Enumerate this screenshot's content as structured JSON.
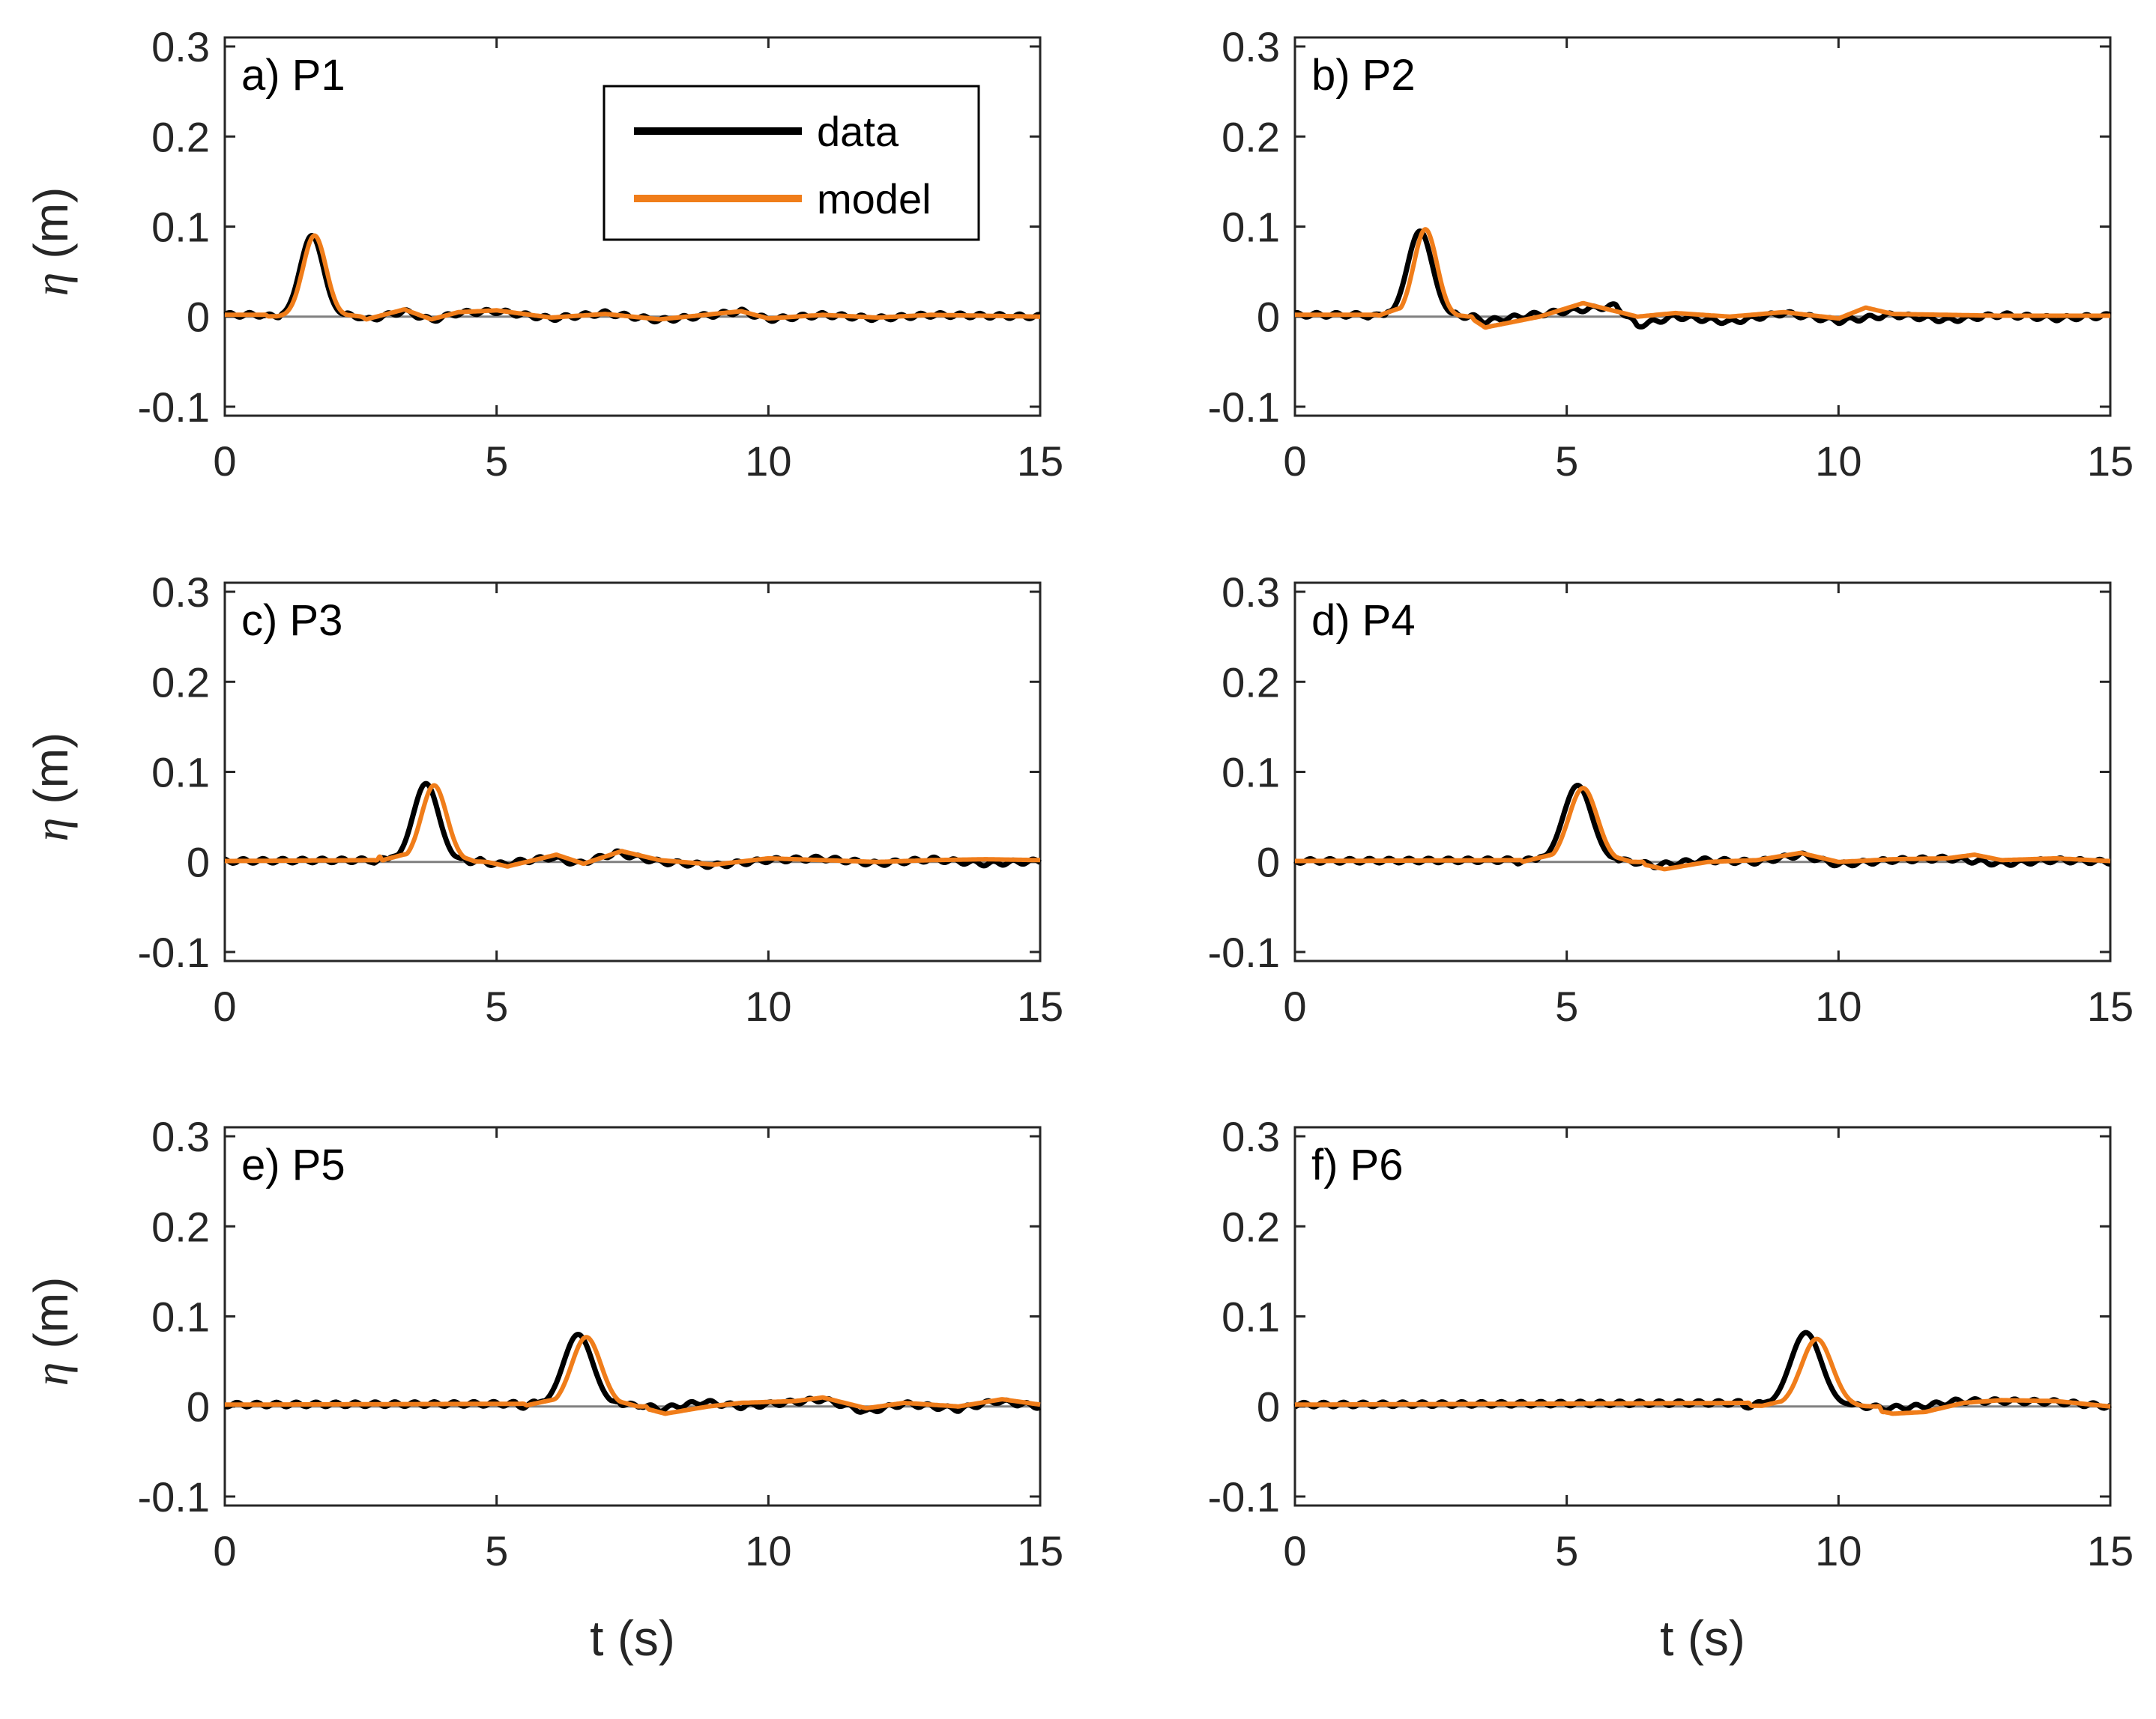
{
  "chart_data": [
    {
      "type": "line",
      "panel_label": "a) P1",
      "xlabel": "",
      "ylabel_symbol": "η",
      "ylabel_unit": "(m)",
      "xlim": [
        0,
        15
      ],
      "ylim": [
        -0.11,
        0.31
      ],
      "xticks": [
        "0",
        "5",
        "10",
        "15"
      ],
      "yticks": [
        "-0.1",
        "0",
        "0.1",
        "0.2",
        "0.3"
      ],
      "baseline": 0,
      "series": [
        {
          "name": "data",
          "color": "#000000",
          "peak": {
            "t": 1.6,
            "eta": 0.09
          },
          "width": 0.3,
          "x": [
            0,
            1.0,
            1.6,
            2.2,
            2.6,
            3.3,
            3.8,
            4.3,
            5.0,
            6.0,
            7.0,
            8.0,
            9.0,
            9.5,
            10.0,
            11.0,
            12.0,
            13.0,
            14.0,
            15.0
          ],
          "y": [
            0.002,
            0.002,
            0.09,
            0.01,
            -0.004,
            0.006,
            -0.004,
            0.004,
            0.006,
            -0.002,
            0.004,
            -0.004,
            0.002,
            0.006,
            -0.003,
            0.002,
            -0.002,
            0.002,
            0.001,
            0.0
          ]
        },
        {
          "name": "model",
          "color": "#f07d1a",
          "peak": {
            "t": 1.65,
            "eta": 0.09
          },
          "width": 0.3,
          "x": [
            0,
            1.0,
            1.65,
            2.25,
            2.6,
            3.3,
            3.8,
            4.3,
            5.0,
            6.0,
            7.0,
            8.0,
            9.0,
            9.5,
            10.0,
            11.0,
            12.0,
            13.0,
            14.0,
            15.0
          ],
          "y": [
            0.002,
            0.002,
            0.09,
            0.01,
            -0.003,
            0.008,
            -0.003,
            0.005,
            0.007,
            -0.001,
            0.003,
            -0.003,
            0.003,
            0.006,
            -0.002,
            0.002,
            -0.001,
            0.002,
            0.001,
            0.0
          ]
        }
      ]
    },
    {
      "type": "line",
      "panel_label": "b) P2",
      "xlabel": "",
      "ylabel_symbol": "",
      "ylabel_unit": "",
      "xlim": [
        0,
        15
      ],
      "ylim": [
        -0.11,
        0.31
      ],
      "xticks": [
        "0",
        "5",
        "10",
        "15"
      ],
      "yticks": [
        "-0.1",
        "0",
        "0.1",
        "0.2",
        "0.3"
      ],
      "baseline": 0,
      "series": [
        {
          "name": "data",
          "color": "#000000",
          "peak": {
            "t": 2.3,
            "eta": 0.095
          },
          "width": 0.32,
          "x": [
            0,
            1.5,
            2.3,
            3.0,
            3.5,
            4.5,
            5.3,
            5.9,
            6.3,
            7.0,
            8.0,
            9.0,
            10.0,
            11.0,
            12.0,
            13.0,
            14.0,
            15.0
          ],
          "y": [
            0.002,
            0.002,
            0.095,
            0.006,
            -0.005,
            0.003,
            0.008,
            0.012,
            -0.01,
            0.0,
            -0.006,
            0.004,
            -0.005,
            0.002,
            -0.004,
            0.002,
            -0.002,
            0.001
          ]
        },
        {
          "name": "model",
          "color": "#f07d1a",
          "peak": {
            "t": 2.4,
            "eta": 0.097
          },
          "width": 0.3,
          "x": [
            0,
            1.5,
            2.4,
            3.0,
            3.5,
            4.5,
            5.3,
            5.9,
            6.3,
            7.0,
            8.0,
            9.0,
            10.0,
            10.5,
            11.0,
            12.0,
            13.0,
            14.0,
            15.0
          ],
          "y": [
            0.002,
            0.002,
            0.097,
            0.008,
            -0.012,
            0.0,
            0.015,
            0.006,
            0.0,
            0.004,
            0.0,
            0.005,
            -0.002,
            0.01,
            0.003,
            0.002,
            0.001,
            0.001,
            0.001
          ]
        }
      ]
    },
    {
      "type": "line",
      "panel_label": "c) P3",
      "xlabel": "",
      "ylabel_symbol": "η",
      "ylabel_unit": "(m)",
      "xlim": [
        0,
        15
      ],
      "ylim": [
        -0.11,
        0.31
      ],
      "xticks": [
        "0",
        "5",
        "10",
        "15"
      ],
      "yticks": [
        "-0.1",
        "0",
        "0.1",
        "0.2",
        "0.3"
      ],
      "baseline": 0,
      "series": [
        {
          "name": "data",
          "color": "#000000",
          "peak": {
            "t": 3.7,
            "eta": 0.087
          },
          "width": 0.33,
          "x": [
            0,
            2.8,
            3.7,
            4.5,
            5.0,
            6.0,
            6.5,
            7.2,
            8.0,
            9.0,
            10.0,
            11.0,
            12.0,
            13.0,
            14.0,
            15.0
          ],
          "y": [
            0.001,
            0.002,
            0.087,
            0.004,
            -0.003,
            0.005,
            -0.002,
            0.01,
            0.0,
            -0.004,
            0.002,
            0.004,
            -0.002,
            0.003,
            -0.002,
            0.001
          ]
        },
        {
          "name": "model",
          "color": "#f07d1a",
          "peak": {
            "t": 3.85,
            "eta": 0.085
          },
          "width": 0.33,
          "x": [
            0,
            2.8,
            3.85,
            4.6,
            5.2,
            6.1,
            6.6,
            7.3,
            8.0,
            9.0,
            10.0,
            11.0,
            12.0,
            13.0,
            14.0,
            15.0
          ],
          "y": [
            0.001,
            0.002,
            0.085,
            0.003,
            -0.005,
            0.008,
            -0.002,
            0.012,
            0.002,
            -0.003,
            0.004,
            0.002,
            0.0,
            0.002,
            0.003,
            0.002
          ]
        }
      ]
    },
    {
      "type": "line",
      "panel_label": "d) P4",
      "xlabel": "",
      "ylabel_symbol": "",
      "ylabel_unit": "",
      "xlim": [
        0,
        15
      ],
      "ylim": [
        -0.11,
        0.31
      ],
      "xticks": [
        "0",
        "5",
        "10",
        "15"
      ],
      "yticks": [
        "-0.1",
        "0",
        "0.1",
        "0.2",
        "0.3"
      ],
      "baseline": 0,
      "series": [
        {
          "name": "data",
          "color": "#000000",
          "peak": {
            "t": 5.2,
            "eta": 0.085
          },
          "width": 0.37,
          "x": [
            0,
            4.2,
            5.2,
            6.1,
            6.6,
            7.5,
            8.5,
            9.3,
            10.0,
            11.0,
            12.0,
            13.0,
            14.0,
            15.0
          ],
          "y": [
            0.001,
            0.002,
            0.085,
            0.002,
            -0.004,
            0.002,
            0.0,
            0.008,
            -0.003,
            0.002,
            0.004,
            -0.002,
            0.002,
            0.0
          ]
        },
        {
          "name": "model",
          "color": "#f07d1a",
          "peak": {
            "t": 5.3,
            "eta": 0.082
          },
          "width": 0.37,
          "x": [
            0,
            4.2,
            5.3,
            6.2,
            6.8,
            7.6,
            8.5,
            9.3,
            10.0,
            11.0,
            12.0,
            12.5,
            13.0,
            14.0,
            15.0
          ],
          "y": [
            0.001,
            0.002,
            0.082,
            0.0,
            -0.008,
            0.0,
            0.002,
            0.01,
            0.0,
            0.003,
            0.004,
            0.008,
            0.002,
            0.004,
            0.001
          ]
        }
      ]
    },
    {
      "type": "line",
      "panel_label": "e) P5",
      "xlabel": "t (s)",
      "ylabel_symbol": "η",
      "ylabel_unit": "(m)",
      "xlim": [
        0,
        15
      ],
      "ylim": [
        -0.11,
        0.31
      ],
      "xticks": [
        "0",
        "5",
        "10",
        "15"
      ],
      "yticks": [
        "-0.1",
        "0",
        "0.1",
        "0.2",
        "0.3"
      ],
      "baseline": 0,
      "series": [
        {
          "name": "data",
          "color": "#000000",
          "peak": {
            "t": 6.5,
            "eta": 0.08
          },
          "width": 0.38,
          "x": [
            0,
            5.5,
            6.5,
            7.5,
            8.0,
            8.8,
            9.5,
            10.5,
            11.0,
            11.8,
            12.5,
            13.5,
            14.2,
            15.0
          ],
          "y": [
            0.002,
            0.003,
            0.08,
            0.004,
            -0.003,
            0.005,
            0.0,
            0.005,
            0.008,
            -0.006,
            0.003,
            -0.003,
            0.006,
            0.0
          ]
        },
        {
          "name": "model",
          "color": "#f07d1a",
          "peak": {
            "t": 6.65,
            "eta": 0.077
          },
          "width": 0.38,
          "x": [
            0,
            5.5,
            6.65,
            7.6,
            8.1,
            8.9,
            9.5,
            10.5,
            11.0,
            11.8,
            12.5,
            13.5,
            14.3,
            15.0
          ],
          "y": [
            0.002,
            0.003,
            0.077,
            0.0,
            -0.008,
            0.0,
            0.004,
            0.006,
            0.01,
            -0.002,
            0.004,
            0.0,
            0.008,
            0.002
          ]
        }
      ]
    },
    {
      "type": "line",
      "panel_label": "f) P6",
      "xlabel": "t (s)",
      "ylabel_symbol": "",
      "ylabel_unit": "",
      "xlim": [
        0,
        15
      ],
      "ylim": [
        -0.11,
        0.31
      ],
      "xticks": [
        "0",
        "5",
        "10",
        "15"
      ],
      "yticks": [
        "-0.1",
        "0",
        "0.1",
        "0.2",
        "0.3"
      ],
      "baseline": 0,
      "series": [
        {
          "name": "data",
          "color": "#000000",
          "peak": {
            "t": 9.4,
            "eta": 0.082
          },
          "width": 0.4,
          "x": [
            0,
            8.4,
            9.4,
            10.3,
            10.8,
            11.5,
            12.2,
            13.0,
            14.0,
            15.0
          ],
          "y": [
            0.002,
            0.004,
            0.082,
            0.003,
            -0.002,
            0.0,
            0.006,
            0.006,
            0.005,
            0.0
          ]
        },
        {
          "name": "model",
          "color": "#f07d1a",
          "peak": {
            "t": 9.6,
            "eta": 0.075
          },
          "width": 0.4,
          "x": [
            0,
            8.6,
            9.6,
            10.5,
            11.0,
            11.6,
            12.3,
            13.0,
            14.0,
            15.0
          ],
          "y": [
            0.002,
            0.004,
            0.075,
            -0.002,
            -0.008,
            -0.006,
            0.004,
            0.007,
            0.006,
            0.0
          ]
        }
      ]
    }
  ],
  "legend": {
    "entries": [
      {
        "label": "data",
        "color": "#000000"
      },
      {
        "label": "model",
        "color": "#f07d1a"
      }
    ],
    "placement": "top-right of panel a"
  },
  "colors": {
    "data": "#000000",
    "model": "#f07d1a",
    "baseline": "#808080",
    "axis": "#262626"
  }
}
